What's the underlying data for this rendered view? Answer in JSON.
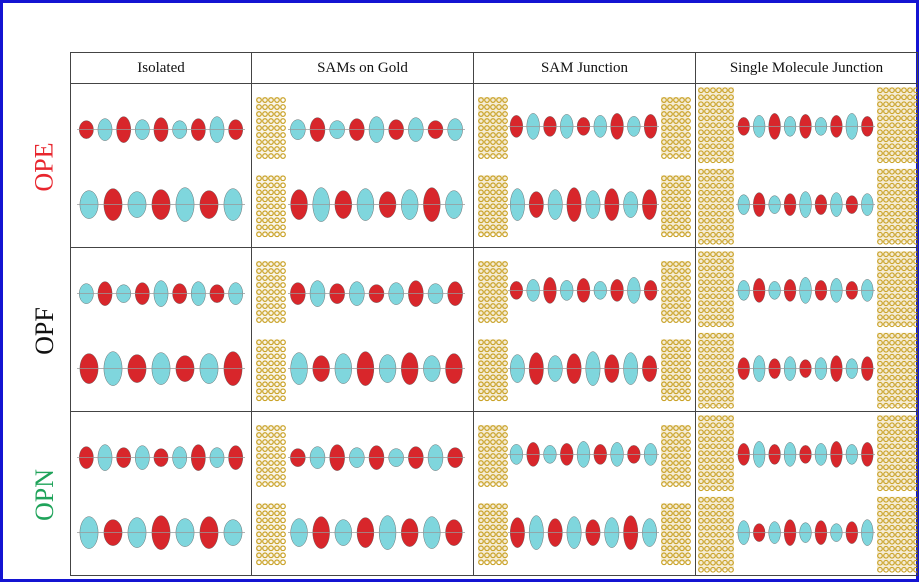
{
  "columns": [
    "Isolated",
    "SAMs on Gold",
    "SAM Junction",
    "Single Molecule Junction"
  ],
  "rows": [
    {
      "label": "OPE",
      "color": "#e8262e"
    },
    {
      "label": "OPF",
      "color": "#111111"
    },
    {
      "label": "OPN",
      "color": "#1fa35a"
    }
  ],
  "colors": {
    "frame": "#1414d2",
    "orbital_red": "#d8262b",
    "orbital_cyan": "#7fd6dd",
    "gold": "#c9a227"
  }
}
